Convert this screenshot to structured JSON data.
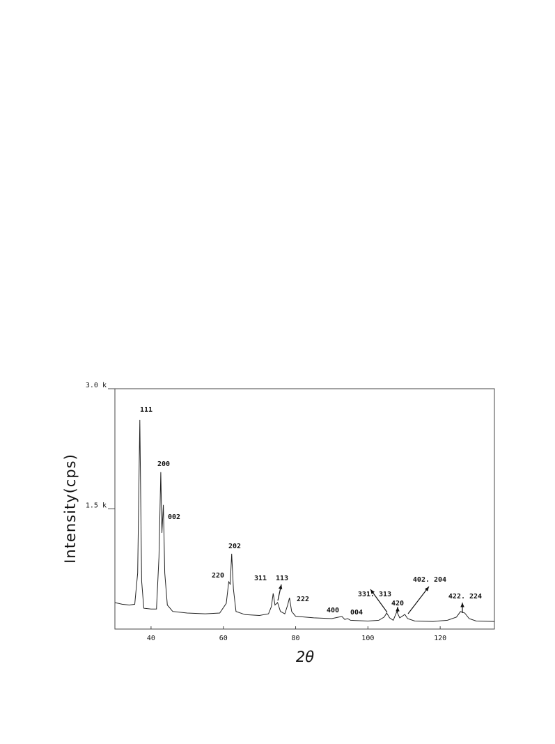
{
  "chart_data": {
    "type": "line",
    "xlabel": "2θ",
    "ylabel": "Intensity(cps)",
    "x": [
      30,
      32,
      34,
      35.5,
      36.3,
      36.9,
      37.4,
      38,
      40,
      41.5,
      42.2,
      42.7,
      43.0,
      43.4,
      43.8,
      44.5,
      46,
      50,
      55,
      59,
      60.8,
      61.5,
      61.9,
      62.3,
      62.8,
      63.5,
      66,
      70,
      72.5,
      73.3,
      73.8,
      74.3,
      75,
      75.8,
      77,
      77.8,
      78.3,
      78.9,
      80,
      85,
      90,
      92,
      92.8,
      93.6,
      94.4,
      95.2,
      100,
      103,
      104.5,
      105.2,
      106,
      107,
      108,
      108.8,
      109.5,
      110.2,
      111,
      113,
      118,
      122,
      124.5,
      125.6,
      126.8,
      128,
      130,
      135
    ],
    "series": [
      {
        "color": "#222222",
        "values": [
          330,
          310,
          300,
          310,
          700,
          2610,
          600,
          260,
          250,
          250,
          900,
          1958,
          1200,
          1550,
          700,
          300,
          220,
          200,
          190,
          200,
          320,
          590,
          560,
          940,
          500,
          220,
          180,
          170,
          190,
          280,
          445,
          300,
          330,
          220,
          190,
          300,
          390,
          220,
          160,
          140,
          130,
          150,
          157,
          120,
          130,
          110,
          100,
          110,
          150,
          200,
          140,
          110,
          218,
          140,
          160,
          183,
          130,
          100,
          95,
          110,
          150,
          218,
          200,
          130,
          100,
          95
        ]
      }
    ],
    "xlim": [
      30,
      135
    ],
    "xticks": [
      40,
      60,
      80,
      100,
      120
    ],
    "ylim": [
      0,
      3000
    ],
    "yticks": [
      {
        "value": 3000,
        "label": "3.0 k"
      },
      {
        "value": 1500,
        "label": "1.5 k"
      }
    ],
    "annotations": [
      "111",
      "200",
      "002",
      "220",
      "202",
      "311",
      "113",
      "222",
      "400",
      "004",
      "331. 313",
      "420",
      "402. 204",
      "422. 224"
    ]
  }
}
